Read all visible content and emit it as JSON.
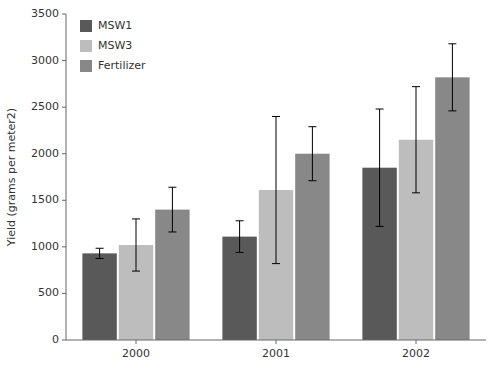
{
  "chart_data": {
    "type": "bar",
    "categories": [
      "2000",
      "2001",
      "2002"
    ],
    "series": [
      {
        "name": "MSW1",
        "color": "#595959",
        "values": [
          930,
          1110,
          1850
        ],
        "errors": [
          55,
          170,
          630
        ]
      },
      {
        "name": "MSW3",
        "color": "#bdbdbd",
        "values": [
          1020,
          1610,
          2150
        ],
        "errors": [
          280,
          790,
          570
        ]
      },
      {
        "name": "Fertilizer",
        "color": "#888888",
        "values": [
          1400,
          2000,
          2820
        ],
        "errors": [
          240,
          290,
          360
        ]
      }
    ],
    "ylabel": "Yield (grams per meter2)",
    "ylim": [
      0,
      3500
    ],
    "yticks": [
      0,
      500,
      1000,
      1500,
      2000,
      2500,
      3000,
      3500
    ],
    "grid": false,
    "legend": "upper left"
  }
}
